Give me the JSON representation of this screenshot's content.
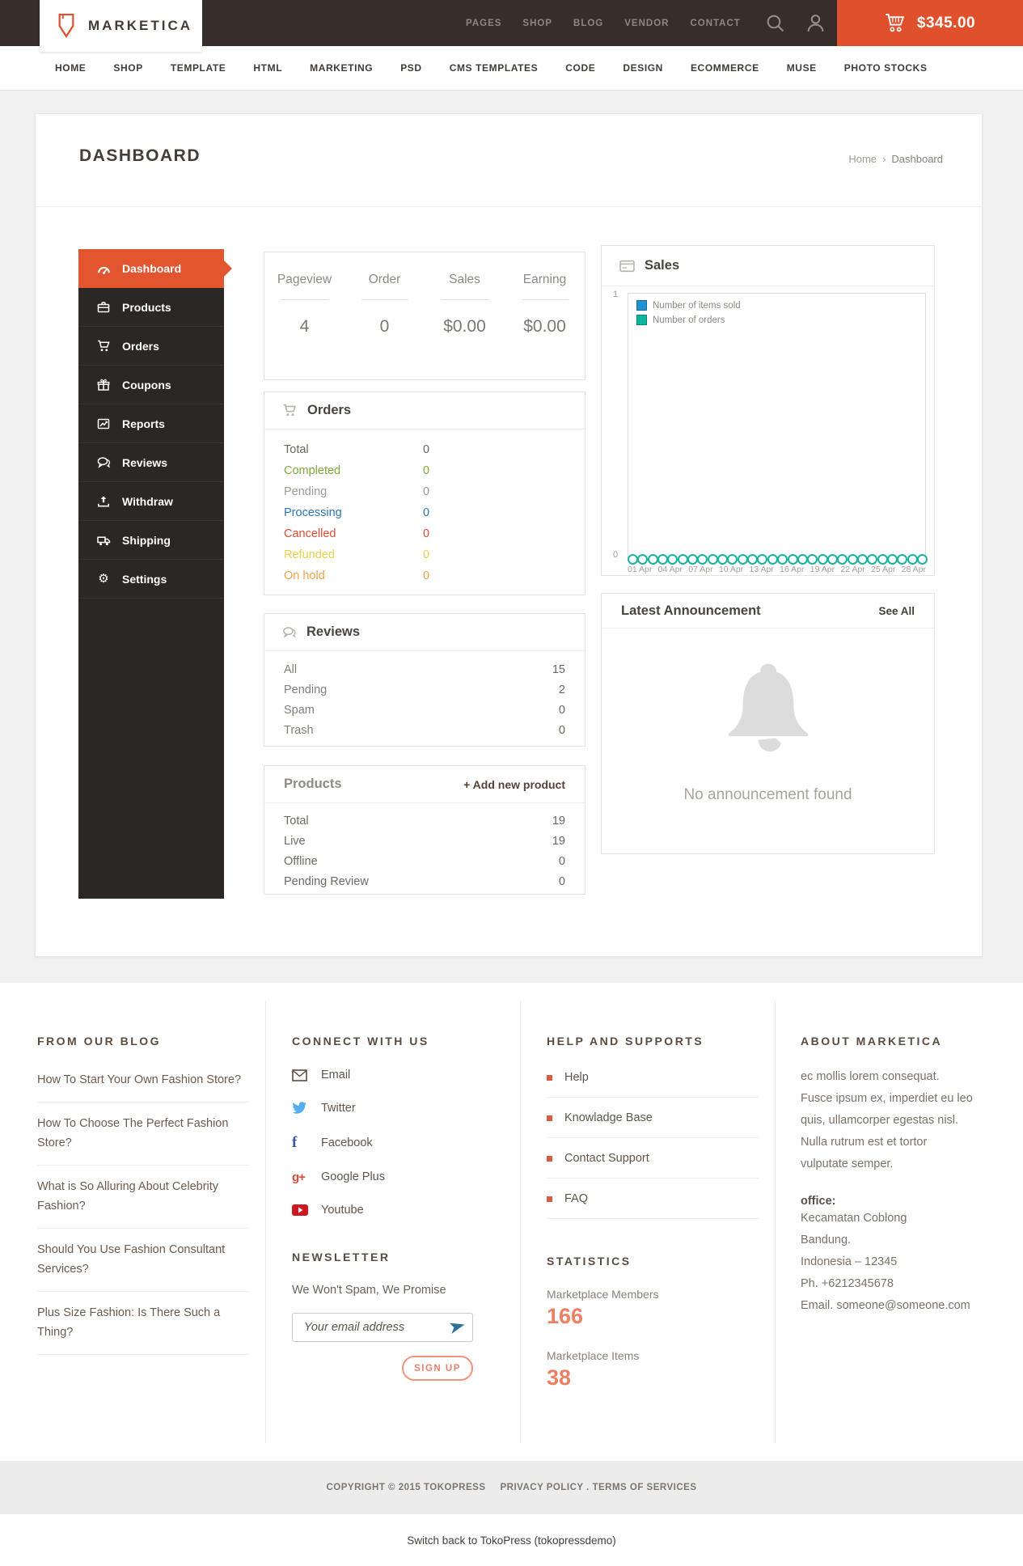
{
  "colors": {
    "accent": "#e0502d",
    "header_bg": "#362e2a",
    "sidebar_bg": "#2b2724",
    "status_completed": "#7aab39",
    "status_pending": "#a09a94",
    "status_processing": "#2d76b3",
    "status_cancelled": "#dc4b33",
    "status_refunded": "#e8d24c",
    "status_on_hold": "#efa04a",
    "legend_items_sold": "#2191d0",
    "legend_orders": "#0fb59c",
    "footer_coral": "#ec8064"
  },
  "header": {
    "brand": "MARKETICA",
    "nav": [
      {
        "label": "PAGES"
      },
      {
        "label": "SHOP"
      },
      {
        "label": "BLOG"
      },
      {
        "label": "VENDOR"
      },
      {
        "label": "CONTACT"
      }
    ],
    "cart_amount": "$345.00"
  },
  "mainnav": {
    "items": [
      {
        "label": "HOME"
      },
      {
        "label": "SHOP"
      },
      {
        "label": "TEMPLATE"
      },
      {
        "label": "HTML"
      },
      {
        "label": "MARKETING"
      },
      {
        "label": "PSD"
      },
      {
        "label": "CMS TEMPLATES"
      },
      {
        "label": "CODE"
      },
      {
        "label": "DESIGN"
      },
      {
        "label": "ECOMMERCE"
      },
      {
        "label": "MUSE"
      },
      {
        "label": "PHOTO STOCKS"
      }
    ]
  },
  "page": {
    "title": "DASHBOARD",
    "breadcrumb_home": "Home",
    "breadcrumb_sep": "›",
    "breadcrumb_current": "Dashboard"
  },
  "sidebar": {
    "items": [
      {
        "label": "Dashboard",
        "icon": "dashboard-icon",
        "active": true
      },
      {
        "label": "Products",
        "icon": "briefcase-icon",
        "active": false
      },
      {
        "label": "Orders",
        "icon": "cart-icon",
        "active": false
      },
      {
        "label": "Coupons",
        "icon": "gift-icon",
        "active": false
      },
      {
        "label": "Reports",
        "icon": "chart-icon",
        "active": false
      },
      {
        "label": "Reviews",
        "icon": "comments-icon",
        "active": false
      },
      {
        "label": "Withdraw",
        "icon": "upload-icon",
        "active": false
      },
      {
        "label": "Shipping",
        "icon": "truck-icon",
        "active": false
      },
      {
        "label": "Settings",
        "icon": "gear-icon",
        "active": false
      }
    ]
  },
  "stats": {
    "items": [
      {
        "label": "Pageview",
        "value": "4"
      },
      {
        "label": "Order",
        "value": "0"
      },
      {
        "label": "Sales",
        "value": "$0.00"
      },
      {
        "label": "Earning",
        "value": "$0.00"
      }
    ]
  },
  "orders_panel": {
    "title": "Orders",
    "rows": [
      {
        "label": "Total",
        "value": "0",
        "color": "#6b655f"
      },
      {
        "label": "Completed",
        "value": "0",
        "color": "#7aab39"
      },
      {
        "label": "Pending",
        "value": "0",
        "color": "#a09a94"
      },
      {
        "label": "Processing",
        "value": "0",
        "color": "#2d76b3"
      },
      {
        "label": "Cancelled",
        "value": "0",
        "color": "#dc4b33"
      },
      {
        "label": "Refunded",
        "value": "0",
        "color": "#e8d24c"
      },
      {
        "label": "On hold",
        "value": "0",
        "color": "#efa04a"
      }
    ]
  },
  "sales_panel": {
    "title": "Sales"
  },
  "reviews_panel": {
    "title": "Reviews",
    "rows": [
      {
        "label": "All",
        "value": "15"
      },
      {
        "label": "Pending",
        "value": "2"
      },
      {
        "label": "Spam",
        "value": "0"
      },
      {
        "label": "Trash",
        "value": "0"
      }
    ]
  },
  "products_panel": {
    "title": "Products",
    "action": "+ Add new product",
    "rows": [
      {
        "label": "Total",
        "value": "19"
      },
      {
        "label": "Live",
        "value": "19"
      },
      {
        "label": "Offline",
        "value": "0"
      },
      {
        "label": "Pending Review",
        "value": "0"
      }
    ]
  },
  "announcement_panel": {
    "title": "Latest Announcement",
    "action": "See All",
    "empty_message": "No announcement found"
  },
  "chart_data": {
    "type": "line",
    "title": "Sales",
    "x_labels": [
      "01 Apr",
      "04 Apr",
      "07 Apr",
      "10 Apr",
      "13 Apr",
      "16 Apr",
      "19 Apr",
      "22 Apr",
      "25 Apr",
      "28 Apr"
    ],
    "days": 30,
    "ylim": [
      0,
      1
    ],
    "y_tick_top": "1",
    "y_tick_bottom": "0",
    "grid": false,
    "legend_position": "top-left",
    "series": [
      {
        "name": "Number of items sold",
        "color": "#2191d0",
        "values": [
          0,
          0,
          0,
          0,
          0,
          0,
          0,
          0,
          0,
          0,
          0,
          0,
          0,
          0,
          0,
          0,
          0,
          0,
          0,
          0,
          0,
          0,
          0,
          0,
          0,
          0,
          0,
          0,
          0,
          0
        ]
      },
      {
        "name": "Number of orders",
        "color": "#0fb59c",
        "values": [
          0,
          0,
          0,
          0,
          0,
          0,
          0,
          0,
          0,
          0,
          0,
          0,
          0,
          0,
          0,
          0,
          0,
          0,
          0,
          0,
          0,
          0,
          0,
          0,
          0,
          0,
          0,
          0,
          0,
          0
        ]
      }
    ]
  },
  "footer": {
    "blog": {
      "heading": "FROM OUR BLOG",
      "posts": [
        {
          "title": "How To Start Your Own Fashion Store?"
        },
        {
          "title": "How To Choose The Perfect Fashion Store?"
        },
        {
          "title": "What is So Alluring About Celebrity Fashion?"
        },
        {
          "title": "Should You Use Fashion Consultant Services?"
        },
        {
          "title": "Plus Size Fashion: Is There Such a Thing?"
        }
      ]
    },
    "connect": {
      "heading": "CONNECT WITH US",
      "links": [
        {
          "label": "Email",
          "icon": "email-icon"
        },
        {
          "label": "Twitter",
          "icon": "twitter-icon"
        },
        {
          "label": "Facebook",
          "icon": "facebook-icon"
        },
        {
          "label": "Google Plus",
          "icon": "google-plus-icon"
        },
        {
          "label": "Youtube",
          "icon": "youtube-icon"
        }
      ]
    },
    "newsletter": {
      "heading": "NEWSLETTER",
      "note": "We Won't Spam, We Promise",
      "placeholder": "Your email address",
      "button": "SIGN UP"
    },
    "help": {
      "heading": "HELP AND SUPPORTS",
      "links": [
        {
          "label": "Help"
        },
        {
          "label": "Knowladge Base"
        },
        {
          "label": "Contact Support"
        },
        {
          "label": "FAQ"
        }
      ]
    },
    "statistics": {
      "heading": "STATISTICS",
      "items": [
        {
          "label": "Marketplace Members",
          "value": "166"
        },
        {
          "label": "Marketplace Items",
          "value": "38"
        }
      ]
    },
    "about": {
      "heading": "ABOUT MARKETICA",
      "text": "ec mollis lorem consequat. Fusce ipsum ex, imperdiet eu leo quis, ullamcorper egestas nisl. Nulla rutrum est et tortor vulputate semper.",
      "office_label": "office:",
      "address_lines": [
        "Kecamatan Coblong",
        "Bandung.",
        "Indonesia – 12345",
        "Ph. +6212345678",
        "Email. someone@someone.com"
      ]
    }
  },
  "bottom": {
    "copyright": "COPYRIGHT © 2015 TOKOPRESS",
    "legal": "PRIVACY POLICY . TERMS OF SERVICES",
    "switch_back": "Switch back to TokoPress (tokopressdemo)"
  }
}
